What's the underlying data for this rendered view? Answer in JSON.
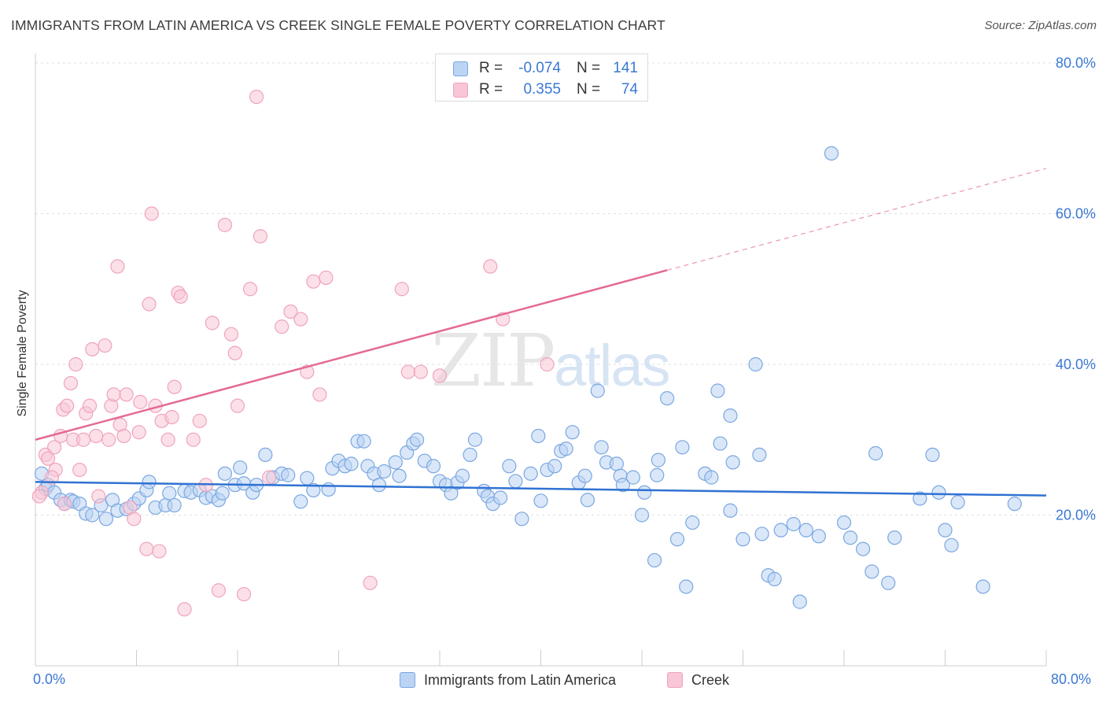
{
  "header": {
    "title": "IMMIGRANTS FROM LATIN AMERICA VS CREEK SINGLE FEMALE POVERTY CORRELATION CHART",
    "source": "Source: ZipAtlas.com"
  },
  "watermark": {
    "zip": "ZIP",
    "atlas": "atlas"
  },
  "legend": {
    "rows": [
      {
        "r_label": "R =",
        "r_value": "-0.074",
        "n_label": "N =",
        "n_value": "141",
        "color": "#7aa7e2"
      },
      {
        "r_label": "R =",
        "r_value": "0.355",
        "n_label": "N =",
        "n_value": "74",
        "color": "#f0a3bd"
      }
    ]
  },
  "bottom_legend": [
    {
      "label": "Immigrants from Latin America",
      "color": "#7aa7e2"
    },
    {
      "label": "Creek",
      "color": "#f0a3bd"
    }
  ],
  "chart_data": {
    "type": "scatter",
    "title": "IMMIGRANTS FROM LATIN AMERICA VS CREEK SINGLE FEMALE POVERTY CORRELATION CHART",
    "xlabel": "",
    "ylabel": "Single Female Poverty",
    "xlim": [
      0,
      80
    ],
    "ylim": [
      0,
      80
    ],
    "x_tick_labels": [
      "0.0%",
      "80.0%"
    ],
    "y_ticks": [
      20,
      40,
      60,
      80
    ],
    "y_tick_labels": [
      "20.0%",
      "40.0%",
      "60.0%",
      "80.0%"
    ],
    "grid": "horizontal dashed",
    "legend_placement": "top-center",
    "colors": {
      "blue_fill": "#bcd4f3",
      "blue_stroke": "#7aa7e2",
      "blue_line": "#2f72d3",
      "pink_fill": "#f8c6d6",
      "pink_stroke": "#f0a3bd",
      "pink_line": "#e46a93"
    },
    "series": [
      {
        "name": "Immigrants from Latin America",
        "r": -0.074,
        "n": 141,
        "trend": {
          "x": [
            0,
            80
          ],
          "y": [
            24.4,
            22.6
          ],
          "dashed_from": null
        },
        "points": [
          [
            0.5,
            25.5
          ],
          [
            0.8,
            23.5
          ],
          [
            1.0,
            24.0
          ],
          [
            1.5,
            23.0
          ],
          [
            2.0,
            22.0
          ],
          [
            2.3,
            21.5
          ],
          [
            2.8,
            22.0
          ],
          [
            3.0,
            21.8
          ],
          [
            3.5,
            21.5
          ],
          [
            4.0,
            20.2
          ],
          [
            4.5,
            20.0
          ],
          [
            5.2,
            21.3
          ],
          [
            5.6,
            19.5
          ],
          [
            6.1,
            22.0
          ],
          [
            6.5,
            20.6
          ],
          [
            7.2,
            20.8
          ],
          [
            7.8,
            21.5
          ],
          [
            8.2,
            22.2
          ],
          [
            8.8,
            23.3
          ],
          [
            9.0,
            24.4
          ],
          [
            9.5,
            21.0
          ],
          [
            10.3,
            21.3
          ],
          [
            10.6,
            22.9
          ],
          [
            11.0,
            21.3
          ],
          [
            11.8,
            23.2
          ],
          [
            12.3,
            23.0
          ],
          [
            13.0,
            23.3
          ],
          [
            13.5,
            22.3
          ],
          [
            14.0,
            22.5
          ],
          [
            14.5,
            22.0
          ],
          [
            14.8,
            22.9
          ],
          [
            15.0,
            25.5
          ],
          [
            15.8,
            24.0
          ],
          [
            16.2,
            26.3
          ],
          [
            16.5,
            24.2
          ],
          [
            17.2,
            23.0
          ],
          [
            17.5,
            24.0
          ],
          [
            18.2,
            28.0
          ],
          [
            18.8,
            25.0
          ],
          [
            19.5,
            25.5
          ],
          [
            20.0,
            25.3
          ],
          [
            21.0,
            21.8
          ],
          [
            21.5,
            24.9
          ],
          [
            22.0,
            23.3
          ],
          [
            23.2,
            23.4
          ],
          [
            23.5,
            26.2
          ],
          [
            24.0,
            27.2
          ],
          [
            24.5,
            26.5
          ],
          [
            25.0,
            26.8
          ],
          [
            25.5,
            29.8
          ],
          [
            26.0,
            29.8
          ],
          [
            26.3,
            26.5
          ],
          [
            26.8,
            25.5
          ],
          [
            27.2,
            24.0
          ],
          [
            27.6,
            25.8
          ],
          [
            28.5,
            27.0
          ],
          [
            28.8,
            25.2
          ],
          [
            29.4,
            28.3
          ],
          [
            29.9,
            29.5
          ],
          [
            30.2,
            30.0
          ],
          [
            30.8,
            27.2
          ],
          [
            31.5,
            26.5
          ],
          [
            32.0,
            24.5
          ],
          [
            32.5,
            24.0
          ],
          [
            32.9,
            22.9
          ],
          [
            33.4,
            24.3
          ],
          [
            33.8,
            25.2
          ],
          [
            34.4,
            28.0
          ],
          [
            34.8,
            30.0
          ],
          [
            35.5,
            23.2
          ],
          [
            35.8,
            22.5
          ],
          [
            36.2,
            21.5
          ],
          [
            36.8,
            22.3
          ],
          [
            37.5,
            26.5
          ],
          [
            38.0,
            24.5
          ],
          [
            38.5,
            19.5
          ],
          [
            39.2,
            25.5
          ],
          [
            39.8,
            30.5
          ],
          [
            40.0,
            21.9
          ],
          [
            40.5,
            26.0
          ],
          [
            41.1,
            26.5
          ],
          [
            41.6,
            28.5
          ],
          [
            42.0,
            28.8
          ],
          [
            42.5,
            31.0
          ],
          [
            43.0,
            24.3
          ],
          [
            43.5,
            25.2
          ],
          [
            43.7,
            22.0
          ],
          [
            44.5,
            36.5
          ],
          [
            44.8,
            29.0
          ],
          [
            45.2,
            27.0
          ],
          [
            46.0,
            26.8
          ],
          [
            46.3,
            25.2
          ],
          [
            46.5,
            24.0
          ],
          [
            47.3,
            25.0
          ],
          [
            48.0,
            20.0
          ],
          [
            48.2,
            23.0
          ],
          [
            49.2,
            25.3
          ],
          [
            49.3,
            27.3
          ],
          [
            50.0,
            35.5
          ],
          [
            51.2,
            29.0
          ],
          [
            50.8,
            16.8
          ],
          [
            49.0,
            14.0
          ],
          [
            51.5,
            10.5
          ],
          [
            52.0,
            19.0
          ],
          [
            53.0,
            25.5
          ],
          [
            53.5,
            25.0
          ],
          [
            54.2,
            29.5
          ],
          [
            54.0,
            36.5
          ],
          [
            55.2,
            27.0
          ],
          [
            55.0,
            33.2
          ],
          [
            55.0,
            20.6
          ],
          [
            56.0,
            16.8
          ],
          [
            57.0,
            40.0
          ],
          [
            57.3,
            28.0
          ],
          [
            57.5,
            17.5
          ],
          [
            58.0,
            12.0
          ],
          [
            58.5,
            11.5
          ],
          [
            59.0,
            18.0
          ],
          [
            60.0,
            18.8
          ],
          [
            61.0,
            18.0
          ],
          [
            62.0,
            17.2
          ],
          [
            63.0,
            68.0
          ],
          [
            64.0,
            19.0
          ],
          [
            64.5,
            17.0
          ],
          [
            65.5,
            15.5
          ],
          [
            66.2,
            12.5
          ],
          [
            66.5,
            28.2
          ],
          [
            67.5,
            11.0
          ],
          [
            68.0,
            17.0
          ],
          [
            70.0,
            22.2
          ],
          [
            71.0,
            28.0
          ],
          [
            71.5,
            23.0
          ],
          [
            72.0,
            18.0
          ],
          [
            72.5,
            16.0
          ],
          [
            73.0,
            21.7
          ],
          [
            75.0,
            10.5
          ],
          [
            77.5,
            21.5
          ],
          [
            60.5,
            8.5
          ]
        ]
      },
      {
        "name": "Creek",
        "r": 0.355,
        "n": 74,
        "trend": {
          "x": [
            0,
            80
          ],
          "y": [
            30.0,
            66.0
          ],
          "solid_until_x": 50
        },
        "points": [
          [
            0.5,
            23.0
          ],
          [
            0.8,
            28.0
          ],
          [
            1.0,
            27.5
          ],
          [
            1.5,
            29.0
          ],
          [
            1.6,
            26.0
          ],
          [
            2.0,
            30.5
          ],
          [
            2.2,
            34.0
          ],
          [
            2.5,
            34.5
          ],
          [
            2.8,
            37.5
          ],
          [
            3.0,
            30.0
          ],
          [
            3.2,
            40.0
          ],
          [
            3.5,
            26.0
          ],
          [
            3.8,
            30.0
          ],
          [
            4.0,
            33.5
          ],
          [
            4.3,
            34.5
          ],
          [
            4.5,
            42.0
          ],
          [
            4.8,
            30.5
          ],
          [
            5.0,
            22.5
          ],
          [
            5.5,
            42.5
          ],
          [
            5.8,
            30.0
          ],
          [
            6.0,
            34.5
          ],
          [
            6.2,
            36.0
          ],
          [
            6.5,
            53.0
          ],
          [
            6.7,
            32.0
          ],
          [
            7.0,
            30.5
          ],
          [
            7.2,
            36.0
          ],
          [
            7.5,
            21.0
          ],
          [
            7.8,
            19.5
          ],
          [
            8.2,
            31.0
          ],
          [
            8.3,
            35.0
          ],
          [
            8.8,
            15.5
          ],
          [
            9.0,
            48.0
          ],
          [
            9.2,
            60.0
          ],
          [
            9.5,
            34.5
          ],
          [
            9.8,
            15.2
          ],
          [
            10.0,
            32.5
          ],
          [
            10.5,
            30.0
          ],
          [
            10.8,
            33.0
          ],
          [
            11.0,
            37.0
          ],
          [
            11.3,
            49.5
          ],
          [
            11.5,
            49.0
          ],
          [
            11.8,
            7.5
          ],
          [
            12.5,
            30.0
          ],
          [
            13.0,
            32.5
          ],
          [
            13.5,
            24.0
          ],
          [
            14.0,
            45.5
          ],
          [
            14.5,
            10.0
          ],
          [
            15.0,
            58.5
          ],
          [
            15.5,
            44.0
          ],
          [
            15.8,
            41.5
          ],
          [
            16.0,
            34.5
          ],
          [
            16.5,
            9.5
          ],
          [
            17.0,
            50.0
          ],
          [
            17.5,
            75.5
          ],
          [
            17.8,
            57.0
          ],
          [
            18.5,
            25.0
          ],
          [
            19.5,
            45.0
          ],
          [
            20.2,
            47.0
          ],
          [
            21.0,
            46.0
          ],
          [
            21.5,
            39.0
          ],
          [
            22.0,
            51.0
          ],
          [
            22.5,
            36.0
          ],
          [
            23.0,
            51.5
          ],
          [
            26.5,
            11.0
          ],
          [
            29.0,
            50.0
          ],
          [
            29.5,
            39.0
          ],
          [
            30.5,
            39.0
          ],
          [
            32.0,
            38.5
          ],
          [
            36.0,
            53.0
          ],
          [
            37.0,
            46.0
          ],
          [
            40.5,
            40.0
          ],
          [
            0.3,
            22.5
          ],
          [
            1.3,
            25.0
          ],
          [
            2.3,
            21.5
          ]
        ]
      }
    ]
  }
}
